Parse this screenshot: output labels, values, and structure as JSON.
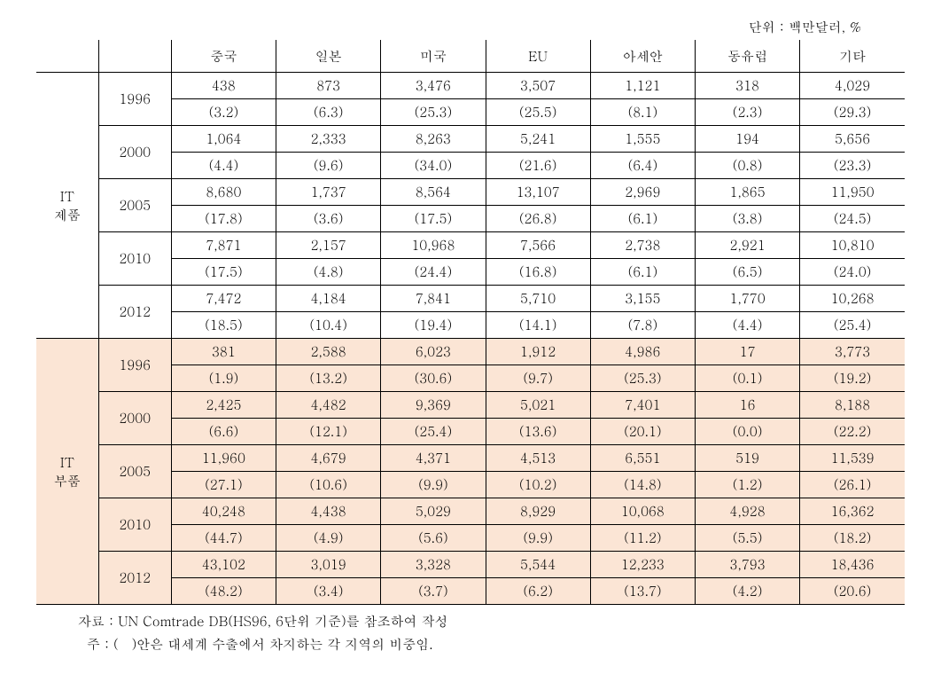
{
  "unit_label": "단위 : 백만달러, %",
  "columns": [
    "중국",
    "일본",
    "미국",
    "EU",
    "아세안",
    "동유럽",
    "기타"
  ],
  "categories": [
    {
      "name": "IT\n제품",
      "tinted": false,
      "years": [
        {
          "year": "1996",
          "vals": [
            "438",
            "873",
            "3,476",
            "3,507",
            "1,121",
            "318",
            "4,029"
          ],
          "pcts": [
            "(3.2)",
            "(6.3)",
            "(25.3)",
            "(25.5)",
            "(8.1)",
            "(2.3)",
            "(29.3)"
          ]
        },
        {
          "year": "2000",
          "vals": [
            "1,064",
            "2,333",
            "8,263",
            "5,241",
            "1,555",
            "194",
            "5,656"
          ],
          "pcts": [
            "(4.4)",
            "(9.6)",
            "(34.0)",
            "(21.6)",
            "(6.4)",
            "(0.8)",
            "(23.3)"
          ]
        },
        {
          "year": "2005",
          "vals": [
            "8,680",
            "1,737",
            "8,564",
            "13,107",
            "2,969",
            "1,865",
            "11,950"
          ],
          "pcts": [
            "(17.8)",
            "(3.6)",
            "(17.5)",
            "(26.8)",
            "(6.1)",
            "(3.8)",
            "(24.5)"
          ]
        },
        {
          "year": "2010",
          "vals": [
            "7,871",
            "2,157",
            "10,968",
            "7,566",
            "2,738",
            "2,921",
            "10,810"
          ],
          "pcts": [
            "(17.5)",
            "(4.8)",
            "(24.4)",
            "(16.8)",
            "(6.1)",
            "(6.5)",
            "(24.0)"
          ]
        },
        {
          "year": "2012",
          "vals": [
            "7,472",
            "4,184",
            "7,841",
            "5,710",
            "3,155",
            "1,770",
            "10,268"
          ],
          "pcts": [
            "(18.5)",
            "(10.4)",
            "(19.4)",
            "(14.1)",
            "(7.8)",
            "(4.4)",
            "(25.4)"
          ]
        }
      ]
    },
    {
      "name": "IT\n부품",
      "tinted": true,
      "years": [
        {
          "year": "1996",
          "vals": [
            "381",
            "2,588",
            "6,023",
            "1,912",
            "4,986",
            "17",
            "3,773"
          ],
          "pcts": [
            "(1.9)",
            "(13.2)",
            "(30.6)",
            "(9.7)",
            "(25.3)",
            "(0.1)",
            "(19.2)"
          ]
        },
        {
          "year": "2000",
          "vals": [
            "2,425",
            "4,482",
            "9,369",
            "5,021",
            "7,401",
            "16",
            "8,188"
          ],
          "pcts": [
            "(6.6)",
            "(12.1)",
            "(25.4)",
            "(13.6)",
            "(20.1)",
            "(0.0)",
            "(22.2)"
          ]
        },
        {
          "year": "2005",
          "vals": [
            "11,960",
            "4,679",
            "4,371",
            "4,513",
            "6,551",
            "519",
            "11,539"
          ],
          "pcts": [
            "(27.1)",
            "(10.6)",
            "(9.9)",
            "(10.2)",
            "(14.8)",
            "(1.2)",
            "(26.1)"
          ]
        },
        {
          "year": "2010",
          "vals": [
            "40,248",
            "4,438",
            "5,029",
            "8,929",
            "10,068",
            "4,928",
            "16,362"
          ],
          "pcts": [
            "(44.7)",
            "(4.9)",
            "(5.6)",
            "(9.9)",
            "(11.2)",
            "(5.5)",
            "(18.2)"
          ]
        },
        {
          "year": "2012",
          "vals": [
            "43,102",
            "3,019",
            "3,328",
            "5,544",
            "12,233",
            "3,793",
            "18,436"
          ],
          "pcts": [
            "(48.2)",
            "(3.4)",
            "(3.7)",
            "(6.2)",
            "(13.7)",
            "(4.2)",
            "(20.6)"
          ]
        }
      ]
    }
  ],
  "notes": {
    "line1": "자료 : UN Comtrade DB(HS96, 6단위 기준)를 참조하여 작성",
    "line2": "  주 : (   )안은 대세계 수출에서 차지하는 각 지역의 비중임."
  }
}
